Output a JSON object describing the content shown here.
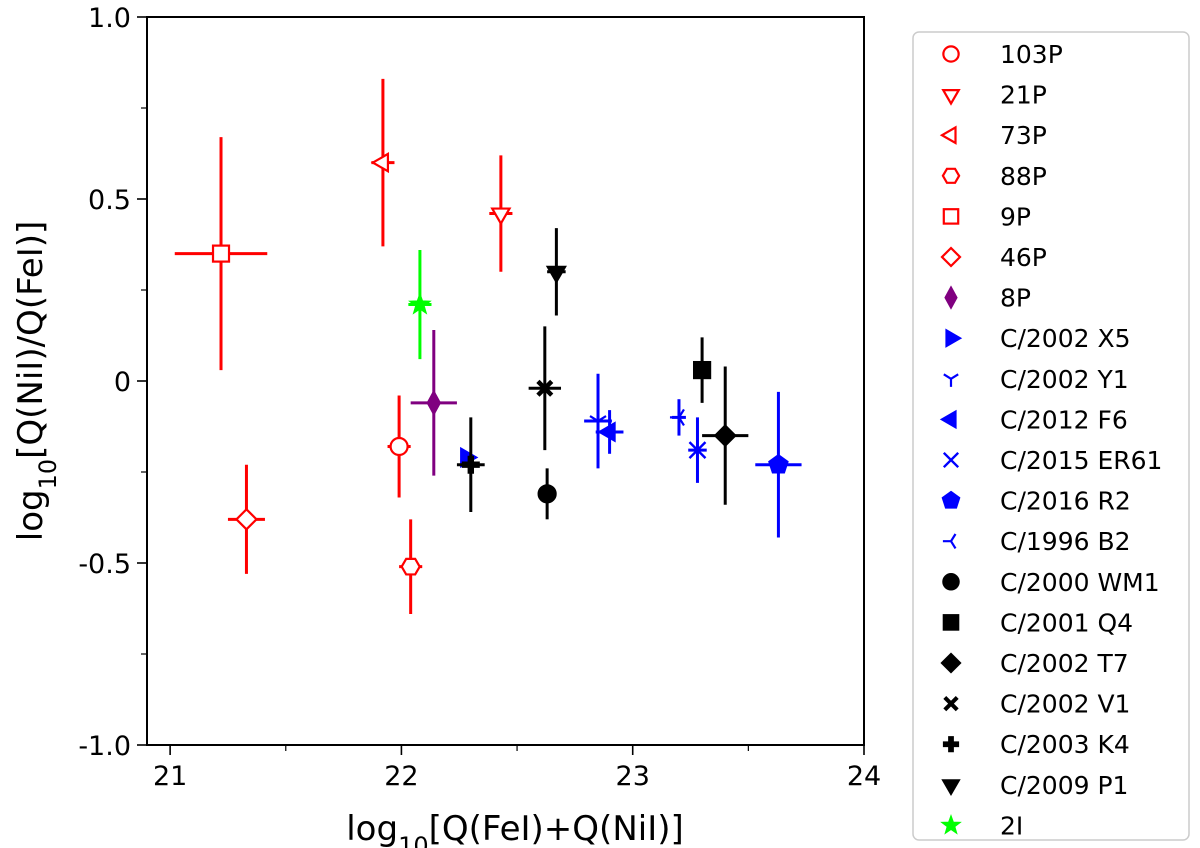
{
  "chart_data": {
    "type": "scatter",
    "title": "",
    "xlabel": "log10[Q(FeI)+Q(NiI)]",
    "ylabel": "log10[Q(NiI)/Q(FeI)]",
    "xlim": [
      20.9,
      24.0
    ],
    "ylim": [
      -1.0,
      1.0
    ],
    "x_major_ticks": [
      21,
      22,
      23,
      24
    ],
    "x_tick_labels": [
      "21",
      "22",
      "23",
      "24"
    ],
    "x_minor_ticks": [
      21.5,
      22.5,
      23.5
    ],
    "y_major_ticks": [
      -1.0,
      -0.5,
      0,
      0.5,
      1.0
    ],
    "y_tick_labels": [
      "-1.0",
      "-0.5",
      "0",
      "0.5",
      "1.0"
    ],
    "y_minor_ticks": [
      -0.75,
      -0.25,
      0.25,
      0.75
    ],
    "legend_position": "outside-right",
    "colors": {
      "family_jupiter": "#ff0000",
      "oort_new": "#0000ff",
      "oort_dynamically_old": "#000000",
      "interstellar": "#00ff00",
      "purple": "#800080"
    },
    "series": [
      {
        "name": "103P",
        "marker": "circle",
        "filled": false,
        "color": "#ff0000",
        "x": 21.99,
        "y": -0.18,
        "xerr": 0.05,
        "yerr": 0.14
      },
      {
        "name": "21P",
        "marker": "triangle-down",
        "filled": false,
        "color": "#ff0000",
        "x": 22.43,
        "y": 0.46,
        "xerr": 0.05,
        "yerr": 0.16
      },
      {
        "name": "73P",
        "marker": "triangle-left",
        "filled": false,
        "color": "#ff0000",
        "x": 21.92,
        "y": 0.6,
        "xerr": 0.05,
        "yerr": 0.23
      },
      {
        "name": "88P",
        "marker": "hexagon",
        "filled": false,
        "color": "#ff0000",
        "x": 22.04,
        "y": -0.51,
        "xerr": 0.05,
        "yerr": 0.13
      },
      {
        "name": "9P",
        "marker": "square",
        "filled": false,
        "color": "#ff0000",
        "x": 21.22,
        "y": 0.35,
        "xerr": 0.2,
        "yerr": 0.32
      },
      {
        "name": "46P",
        "marker": "diamond",
        "filled": false,
        "color": "#ff0000",
        "x": 21.33,
        "y": -0.38,
        "xerr": 0.08,
        "yerr": 0.15
      },
      {
        "name": "8P",
        "marker": "thin-diamond",
        "filled": true,
        "color": "#800080",
        "x": 22.14,
        "y": -0.06,
        "xerr": 0.1,
        "yerr": 0.2
      },
      {
        "name": "C/2002 X5",
        "marker": "triangle-right",
        "filled": true,
        "color": "#0000ff",
        "x": 22.28,
        "y": -0.21,
        "xerr": 0.0,
        "yerr": 0.0
      },
      {
        "name": "C/2002 Y1",
        "marker": "tri-down",
        "filled": true,
        "color": "#0000ff",
        "x": 22.85,
        "y": -0.11,
        "xerr": 0.06,
        "yerr": 0.13
      },
      {
        "name": "C/2012 F6",
        "marker": "triangle-left",
        "filled": true,
        "color": "#0000ff",
        "x": 22.9,
        "y": -0.14,
        "xerr": 0.06,
        "yerr": 0.06
      },
      {
        "name": "C/2015 ER61",
        "marker": "x",
        "filled": true,
        "color": "#0000ff",
        "x": 23.28,
        "y": -0.19,
        "xerr": 0.04,
        "yerr": 0.09
      },
      {
        "name": "C/2016 R2",
        "marker": "pentagon",
        "filled": true,
        "color": "#0000ff",
        "x": 23.63,
        "y": -0.23,
        "xerr": 0.1,
        "yerr": 0.2
      },
      {
        "name": "C/1996 B2",
        "marker": "tri-left",
        "filled": true,
        "color": "#0000ff",
        "x": 23.2,
        "y": -0.1,
        "xerr": 0.03,
        "yerr": 0.05
      },
      {
        "name": "C/2000 WM1",
        "marker": "circle",
        "filled": true,
        "color": "#000000",
        "x": 22.63,
        "y": -0.31,
        "xerr": 0.0,
        "yerr": 0.07
      },
      {
        "name": "C/2001 Q4",
        "marker": "square",
        "filled": true,
        "color": "#000000",
        "x": 23.3,
        "y": 0.03,
        "xerr": 0.03,
        "yerr": 0.09
      },
      {
        "name": "C/2002 T7",
        "marker": "diamond",
        "filled": true,
        "color": "#000000",
        "x": 23.4,
        "y": -0.15,
        "xerr": 0.1,
        "yerr": 0.19
      },
      {
        "name": "C/2002 V1",
        "marker": "x-filled",
        "filled": true,
        "color": "#000000",
        "x": 22.62,
        "y": -0.02,
        "xerr": 0.07,
        "yerr": 0.17
      },
      {
        "name": "C/2003 K4",
        "marker": "plus-filled",
        "filled": true,
        "color": "#000000",
        "x": 22.3,
        "y": -0.23,
        "xerr": 0.06,
        "yerr": 0.13
      },
      {
        "name": "C/2009 P1",
        "marker": "triangle-down",
        "filled": true,
        "color": "#000000",
        "x": 22.67,
        "y": 0.3,
        "xerr": 0.04,
        "yerr": 0.12
      },
      {
        "name": "2I",
        "marker": "star",
        "filled": true,
        "color": "#00ff00",
        "x": 22.08,
        "y": 0.21,
        "xerr": 0.05,
        "yerr": 0.15
      }
    ]
  }
}
